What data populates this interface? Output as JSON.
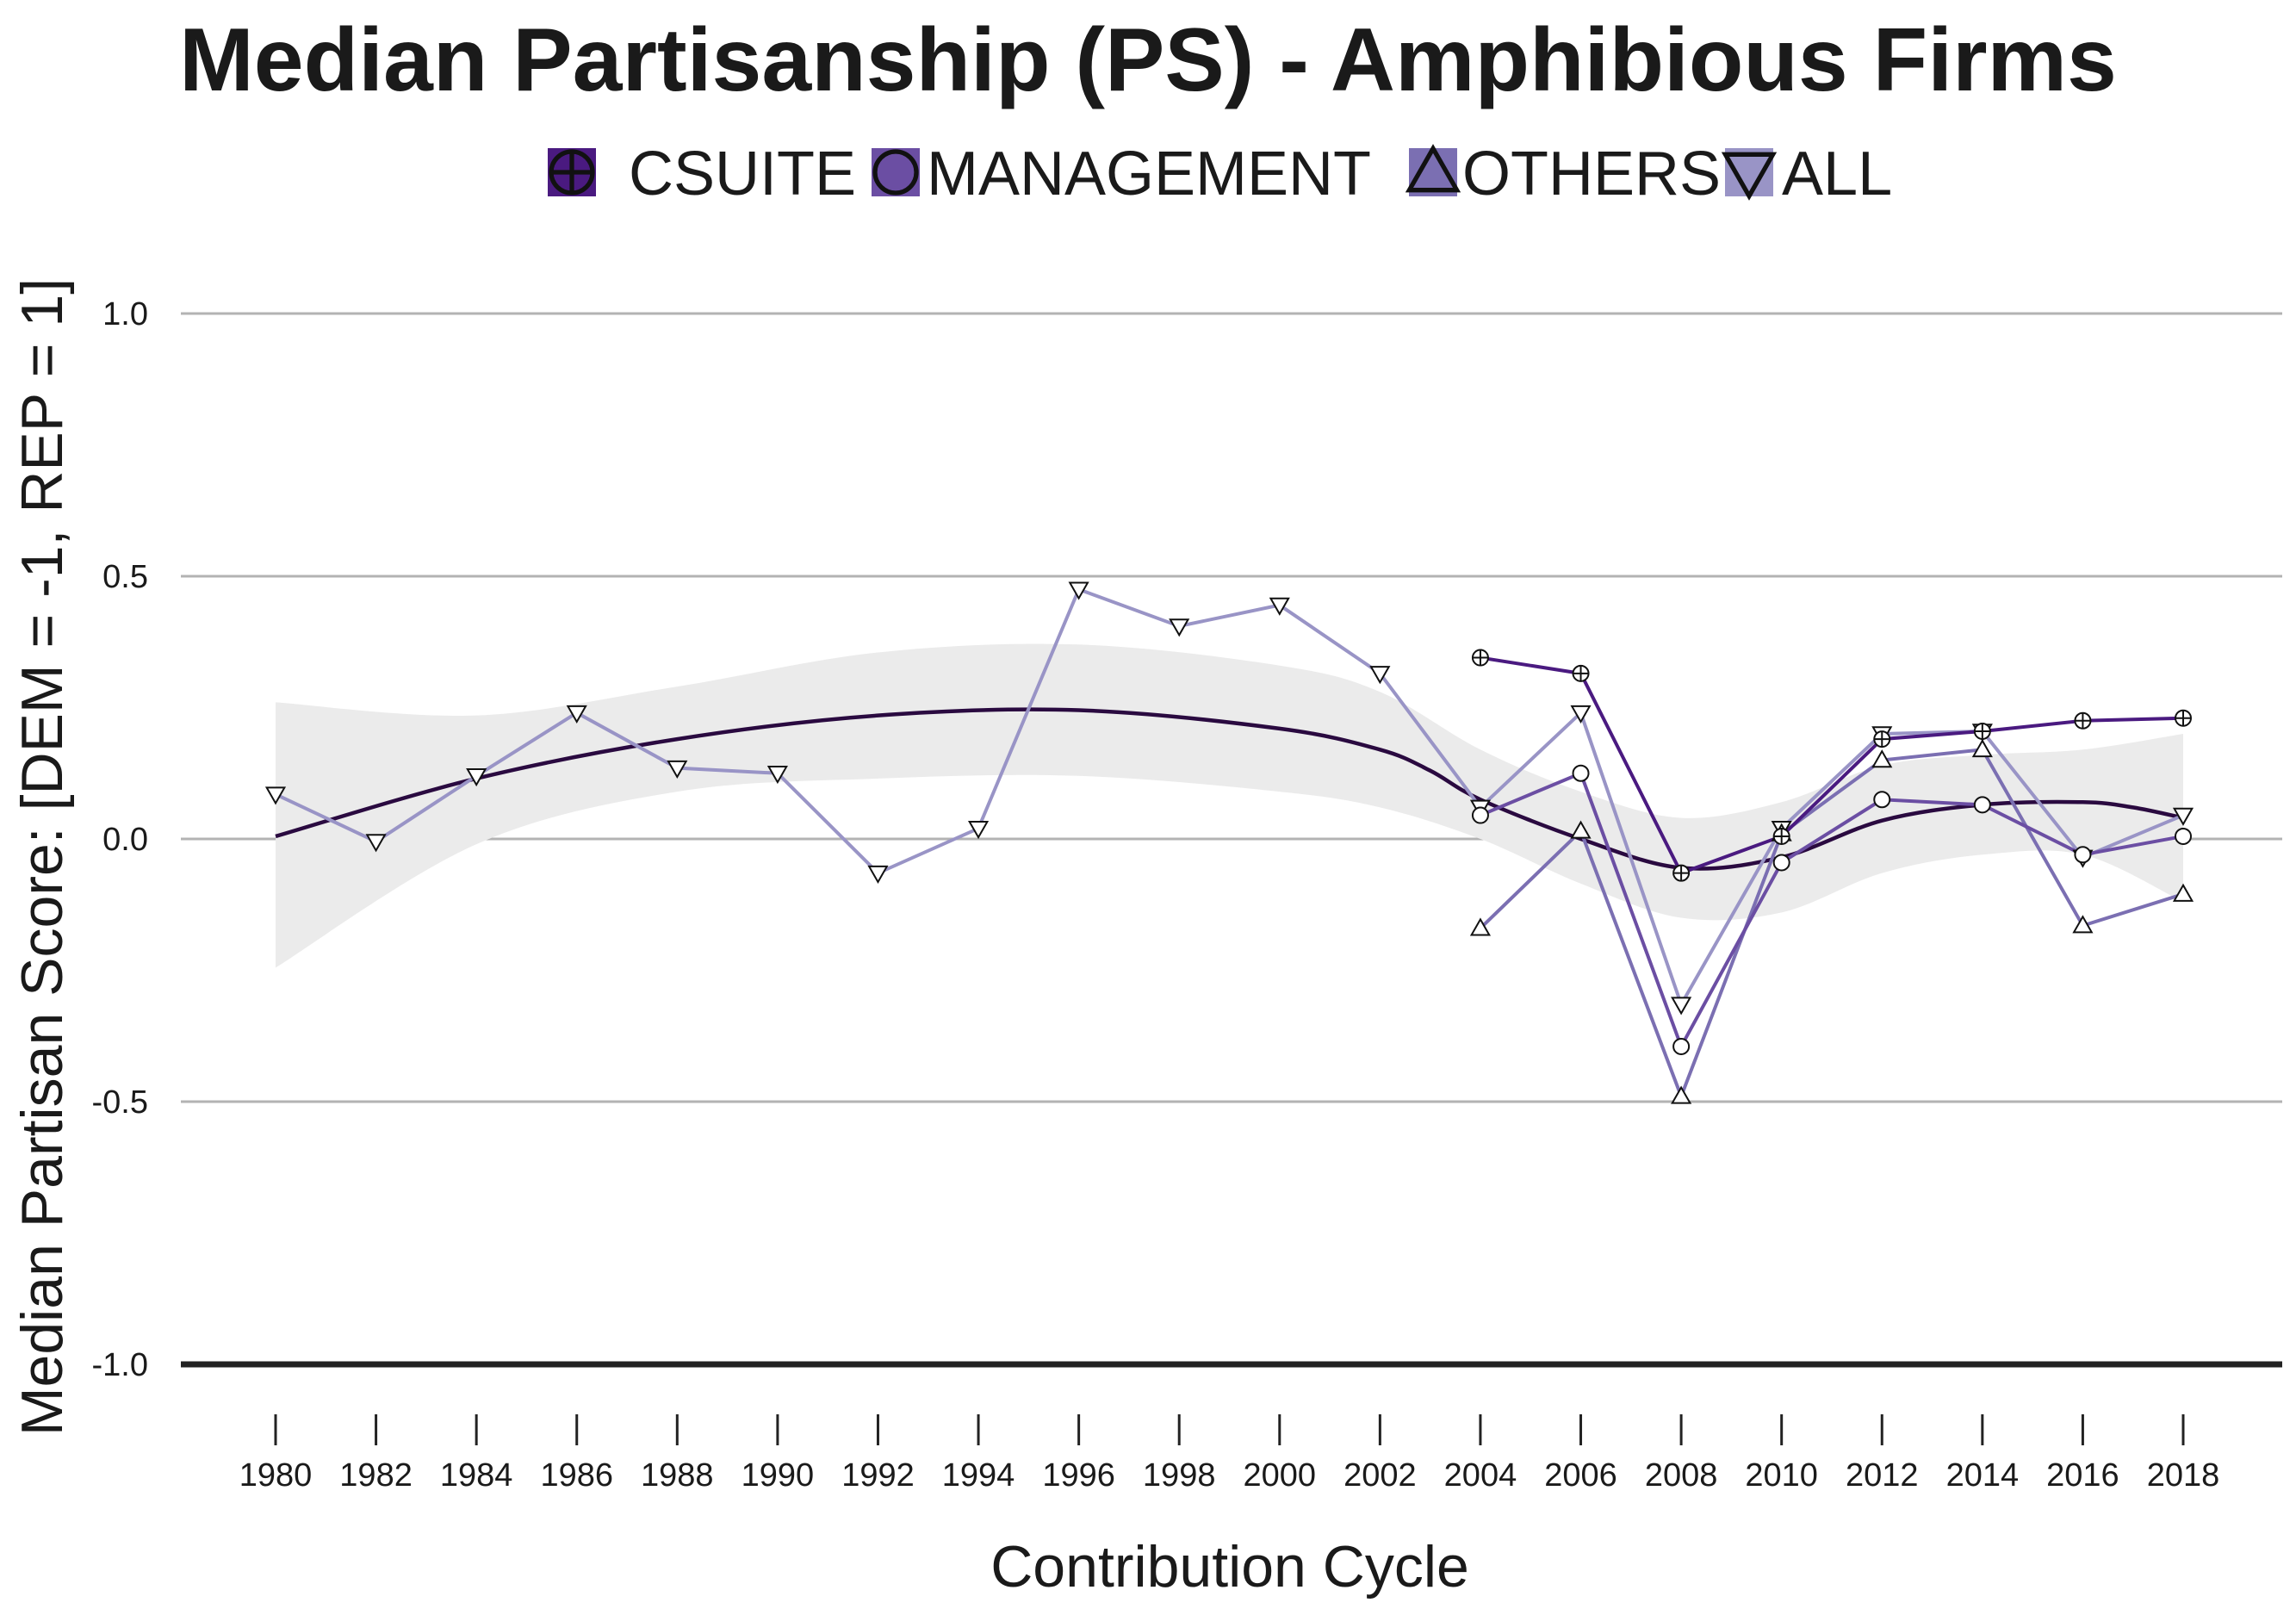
{
  "chart_data": {
    "type": "line",
    "title": "Median Partisanship (PS) - Amphibious Firms",
    "xlabel": "Contribution Cycle",
    "ylabel": "Median Partisan Score: [DEM = -1, REP = 1]",
    "xlim": [
      1980,
      2018
    ],
    "ylim": [
      -1,
      1
    ],
    "x_ticks": [
      "1980",
      "1982",
      "1984",
      "1986",
      "1988",
      "1990",
      "1992",
      "1994",
      "1996",
      "1998",
      "2000",
      "2002",
      "2004",
      "2006",
      "2008",
      "2010",
      "2012",
      "2014",
      "2016",
      "2018"
    ],
    "y_ticks": [
      {
        "value": 1.0,
        "label": "1.0"
      },
      {
        "value": 0.5,
        "label": "0.5"
      },
      {
        "value": 0.0,
        "label": "0.0"
      },
      {
        "value": -0.5,
        "label": "-0.5"
      },
      {
        "value": -1.0,
        "label": "-1.0"
      }
    ],
    "grid": true,
    "legend_position": "top",
    "series": [
      {
        "name": "CSUITE",
        "marker": "circle-plus",
        "color": "#4a1a80",
        "x": [
          2004,
          2006,
          2008,
          2010,
          2012,
          2014,
          2016,
          2018
        ],
        "y": [
          0.345,
          0.315,
          -0.065,
          0.005,
          0.19,
          0.205,
          0.225,
          0.23
        ]
      },
      {
        "name": "MANAGEMENT",
        "marker": "circle",
        "color": "#6b4ea3",
        "x": [
          2004,
          2006,
          2008,
          2010,
          2012,
          2014,
          2016,
          2018
        ],
        "y": [
          0.045,
          0.125,
          -0.395,
          -0.045,
          0.075,
          0.065,
          -0.03,
          0.005
        ]
      },
      {
        "name": "OTHERS",
        "marker": "triangle-up",
        "color": "#7b6fb2",
        "x": [
          2004,
          2006,
          2008,
          2010,
          2012,
          2014,
          2016,
          2018
        ],
        "y": [
          -0.17,
          0.015,
          -0.49,
          0.01,
          0.15,
          0.17,
          -0.165,
          -0.105
        ]
      },
      {
        "name": "ALL",
        "marker": "triangle-down",
        "color": "#9994c6",
        "x": [
          1980,
          1982,
          1984,
          1986,
          1988,
          1990,
          1992,
          1994,
          1996,
          1998,
          2000,
          2002,
          2004,
          2006,
          2008,
          2010,
          2012,
          2014,
          2016,
          2018
        ],
        "y": [
          0.085,
          -0.005,
          0.12,
          0.24,
          0.135,
          0.125,
          -0.065,
          0.02,
          0.475,
          0.405,
          0.445,
          0.315,
          0.06,
          0.24,
          -0.315,
          0.02,
          0.2,
          0.205,
          -0.035,
          0.045
        ]
      }
    ],
    "smooth_trend": {
      "color": "#2a0a40",
      "x": [
        1980,
        1984,
        1988,
        1992,
        1996,
        2000,
        2002,
        2003,
        2004,
        2006,
        2008,
        2010,
        2012,
        2014,
        2016,
        2017,
        2018
      ],
      "y": [
        0.005,
        0.115,
        0.19,
        0.235,
        0.245,
        0.21,
        0.17,
        0.13,
        0.075,
        0.0,
        -0.055,
        -0.035,
        0.035,
        0.065,
        0.07,
        0.06,
        0.04
      ]
    },
    "confidence_band": {
      "color": "#ebebeb",
      "x": [
        1980,
        1984,
        1988,
        1992,
        1996,
        2000,
        2002,
        2004,
        2006,
        2008,
        2010,
        2012,
        2014,
        2016,
        2018
      ],
      "upper": [
        0.26,
        0.235,
        0.29,
        0.355,
        0.37,
        0.33,
        0.28,
        0.17,
        0.09,
        0.04,
        0.07,
        0.14,
        0.16,
        0.17,
        0.2
      ],
      "lower": [
        -0.245,
        -0.01,
        0.09,
        0.115,
        0.12,
        0.09,
        0.06,
        0.0,
        -0.085,
        -0.15,
        -0.14,
        -0.065,
        -0.03,
        -0.03,
        -0.12
      ]
    }
  }
}
